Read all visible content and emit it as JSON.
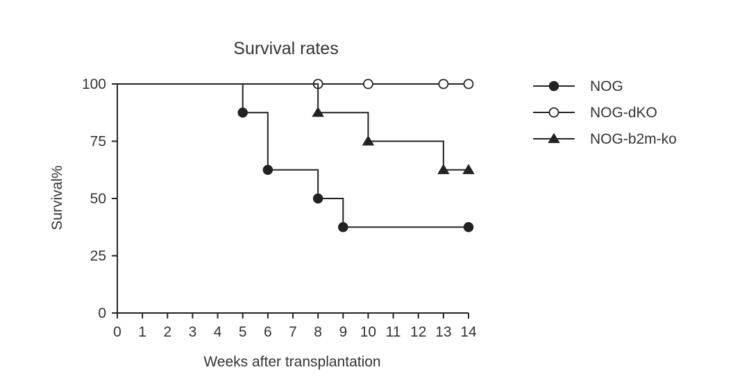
{
  "chart_data": {
    "type": "line",
    "title": "Survival rates",
    "xlabel": "Weeks after transplantation",
    "ylabel": "Survival%",
    "xlim": [
      0,
      14
    ],
    "ylim": [
      0,
      100
    ],
    "xticks": [
      "0",
      "1",
      "2",
      "3",
      "4",
      "5",
      "6",
      "7",
      "8",
      "9",
      "10",
      "11",
      "12",
      "13",
      "14"
    ],
    "yticks": [
      "0",
      "25",
      "50",
      "75",
      "100"
    ],
    "grid": false,
    "legend_position": "right",
    "series": [
      {
        "name": "NOG",
        "marker": "filled-circle",
        "color": "#222222",
        "step_x": [
          0,
          5,
          6,
          8,
          9,
          14
        ],
        "step_y": [
          100,
          87.5,
          62.5,
          50,
          37.5,
          37.5
        ],
        "marker_x": [
          5,
          6,
          8,
          9,
          14
        ],
        "marker_y": [
          87.5,
          62.5,
          50,
          37.5,
          37.5
        ]
      },
      {
        "name": "NOG-dKO",
        "marker": "open-circle",
        "color": "#222222",
        "step_x": [
          0,
          14
        ],
        "step_y": [
          100,
          100
        ],
        "marker_x": [
          8,
          10,
          13,
          14
        ],
        "marker_y": [
          100,
          100,
          100,
          100
        ]
      },
      {
        "name": "NOG-b2m-ko",
        "marker": "filled-triangle",
        "color": "#222222",
        "step_x": [
          0,
          8,
          10,
          13,
          14
        ],
        "step_y": [
          100,
          87.5,
          75,
          62.5,
          62.5
        ],
        "marker_x": [
          8,
          10,
          13,
          14
        ],
        "marker_y": [
          87.5,
          75,
          62.5,
          62.5
        ]
      }
    ]
  }
}
